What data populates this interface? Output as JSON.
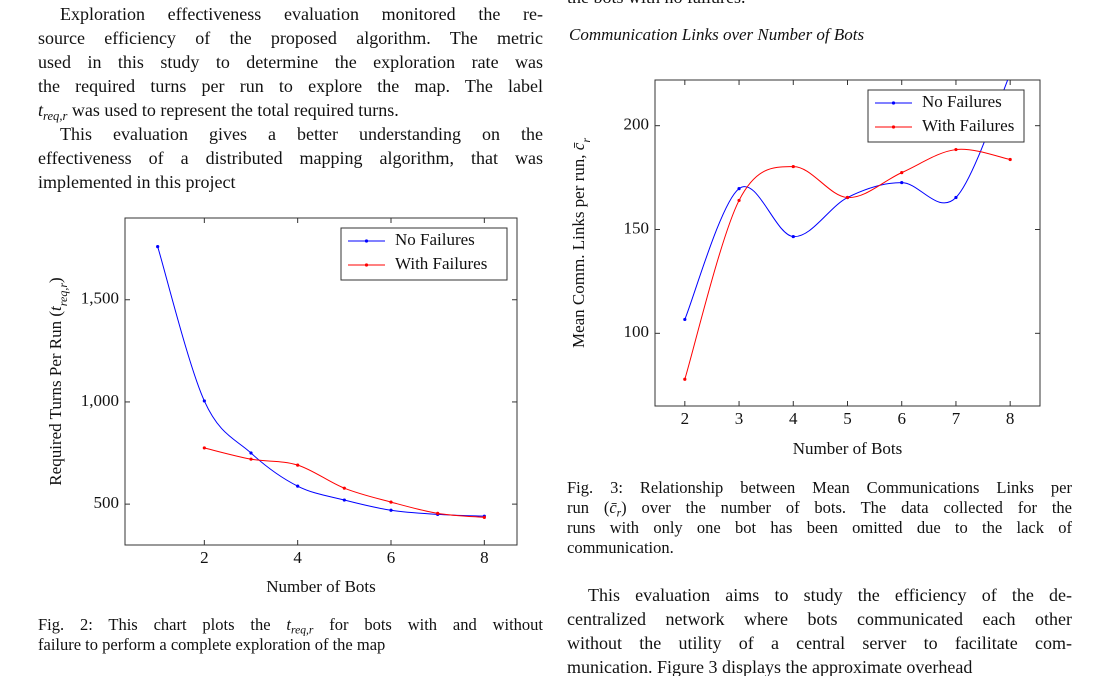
{
  "left": {
    "paragraphs": [
      [
        "Exploration effectiveness evaluation monitored the re-",
        "source efficiency of the proposed algorithm. The metric",
        "used in this study to determine the exploration rate was",
        "the required turns per run to explore the map. The label",
        [
          {
            "base": "t",
            "sub": "req,r"
          },
          " was used to represent the total required turns."
        ]
      ],
      [
        "This evaluation gives a better understanding on the",
        "effectiveness of a distributed mapping algorithm, that was",
        "implemented in this project"
      ]
    ]
  },
  "right": {
    "top_fragment": "the bots with no failures.",
    "paragraph": [
      "This evaluation aims to study the efficiency of the de-",
      "centralized network where bots communicated each other",
      "without the utility of a central server to facilitate com-",
      "munication. Figure 3 displays the approximate overhead"
    ]
  },
  "figures": [
    {
      "caption": [
        [
          "Fig. 2: This chart plots the ",
          {
            "base": "t",
            "sub": "req,r"
          },
          " for bots with and without"
        ],
        "failure to perform a complete exploration of the map"
      ]
    },
    {
      "caption": [
        "Fig. 3: Relationship between Mean Communications Links per",
        [
          "run (",
          {
            "base": "c̄",
            "sub": "r"
          },
          ") over the number of bots. The data collected for the"
        ],
        "runs with only one bot has been omitted due to the lack of",
        "communication."
      ]
    }
  ],
  "chart_data": [
    {
      "type": "line",
      "xlabel": "Number of Bots",
      "ylabel": [
        "Required Turns Per Run (",
        {
          "base": "t",
          "sub": "req,r"
        },
        ")"
      ],
      "xlim": [
        0.3,
        8.7
      ],
      "ylim": [
        300,
        1900
      ],
      "xticks": [
        2,
        4,
        6,
        8
      ],
      "yticks": [
        500,
        {
          "value": 1000,
          "label": "1,000"
        },
        {
          "value": 1500,
          "label": "1,500"
        }
      ],
      "legend": "upper right",
      "grid": false,
      "series": [
        {
          "name": "No Failures",
          "color": "#0000ff",
          "x": [
            1,
            2,
            3,
            4,
            5,
            6,
            7,
            8
          ],
          "values": [
            1760,
            1005,
            750,
            588,
            520,
            470,
            450,
            441
          ]
        },
        {
          "name": "With Failures",
          "color": "#ff0000",
          "x": [
            2,
            3,
            4,
            5,
            6,
            7,
            8
          ],
          "values": [
            775,
            720,
            691,
            578,
            510,
            455,
            435
          ]
        }
      ]
    },
    {
      "type": "line",
      "title": "Communication Links over Number of Bots",
      "xlabel": "Number of Bots",
      "ylabel": [
        "Mean Comm. Links per run, ",
        {
          "base": "c̄",
          "sub": "r"
        }
      ],
      "xlim": [
        1.45,
        8.55
      ],
      "ylim": [
        65,
        222
      ],
      "xticks": [
        2,
        3,
        4,
        5,
        6,
        7,
        8
      ],
      "yticks": [
        100,
        150,
        200
      ],
      "legend": "upper right",
      "grid": false,
      "series": [
        {
          "name": "No Failures",
          "color": "#0000ff",
          "x": [
            2,
            3,
            4,
            5,
            6,
            7,
            8
          ],
          "values": [
            106.7,
            169.7,
            146.6,
            165.4,
            172.6,
            165.4,
            225
          ]
        },
        {
          "name": "With Failures",
          "color": "#ff0000",
          "x": [
            2,
            3,
            4,
            5,
            6,
            7,
            8
          ],
          "values": [
            77.9,
            164,
            180.3,
            165.4,
            177.4,
            188.5,
            183.7
          ]
        }
      ]
    }
  ]
}
